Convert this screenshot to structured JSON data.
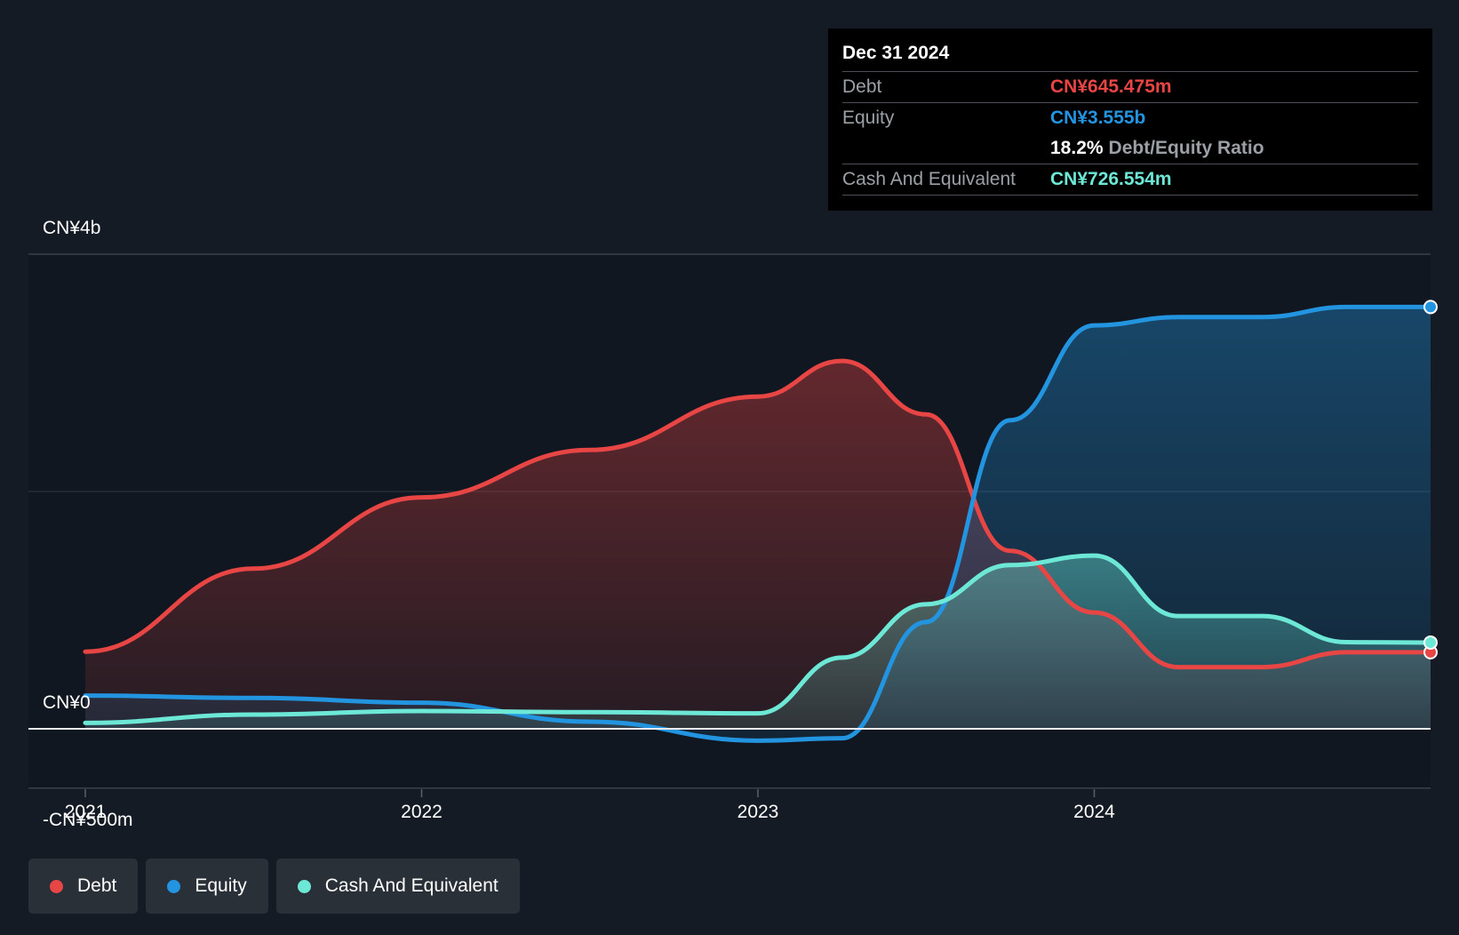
{
  "chart_data": {
    "type": "area",
    "x_ticks": [
      "2021",
      "2022",
      "2023",
      "2024"
    ],
    "y_tick_labels": [
      "CN¥4b",
      "CN¥0",
      "-CN¥500m"
    ],
    "y_unit": "CN¥ billions",
    "ylim": [
      -0.5,
      4.0
    ],
    "grid": true,
    "series": [
      {
        "name": "Debt",
        "color": "#e84545",
        "points": [
          [
            2021.0,
            0.65
          ],
          [
            2021.5,
            1.35
          ],
          [
            2022.0,
            1.95
          ],
          [
            2022.5,
            2.35
          ],
          [
            2023.0,
            2.8
          ],
          [
            2023.25,
            3.1
          ],
          [
            2023.5,
            2.65
          ],
          [
            2023.75,
            1.5
          ],
          [
            2024.0,
            0.98
          ],
          [
            2024.25,
            0.52
          ],
          [
            2024.5,
            0.52
          ],
          [
            2024.75,
            0.645
          ],
          [
            2025.0,
            0.645
          ]
        ]
      },
      {
        "name": "Equity",
        "color": "#2394df",
        "points": [
          [
            2021.0,
            0.28
          ],
          [
            2021.5,
            0.26
          ],
          [
            2022.0,
            0.22
          ],
          [
            2022.5,
            0.06
          ],
          [
            2023.0,
            -0.1
          ],
          [
            2023.25,
            -0.08
          ],
          [
            2023.5,
            0.9
          ],
          [
            2023.75,
            2.6
          ],
          [
            2024.0,
            3.4
          ],
          [
            2024.25,
            3.47
          ],
          [
            2024.5,
            3.47
          ],
          [
            2024.75,
            3.555
          ],
          [
            2025.0,
            3.555
          ]
        ]
      },
      {
        "name": "Cash And Equivalent",
        "color": "#6ee8d6",
        "points": [
          [
            2021.0,
            0.05
          ],
          [
            2021.5,
            0.12
          ],
          [
            2022.0,
            0.15
          ],
          [
            2022.5,
            0.14
          ],
          [
            2023.0,
            0.13
          ],
          [
            2023.25,
            0.6
          ],
          [
            2023.5,
            1.05
          ],
          [
            2023.75,
            1.38
          ],
          [
            2024.0,
            1.46
          ],
          [
            2024.25,
            0.95
          ],
          [
            2024.5,
            0.95
          ],
          [
            2024.75,
            0.73
          ],
          [
            2025.0,
            0.727
          ]
        ]
      }
    ]
  },
  "tooltip": {
    "date": "Dec 31 2024",
    "debt_label": "Debt",
    "debt_value": "CN¥645.475m",
    "equity_label": "Equity",
    "equity_value": "CN¥3.555b",
    "ratio_value": "18.2%",
    "ratio_label": "Debt/Equity Ratio",
    "cash_label": "Cash And Equivalent",
    "cash_value": "CN¥726.554m"
  },
  "legend": {
    "debt": "Debt",
    "equity": "Equity",
    "cash": "Cash And Equivalent"
  },
  "colors": {
    "background": "#151b24",
    "debt": "#e84545",
    "equity": "#2394df",
    "cash": "#6ee8d6"
  }
}
